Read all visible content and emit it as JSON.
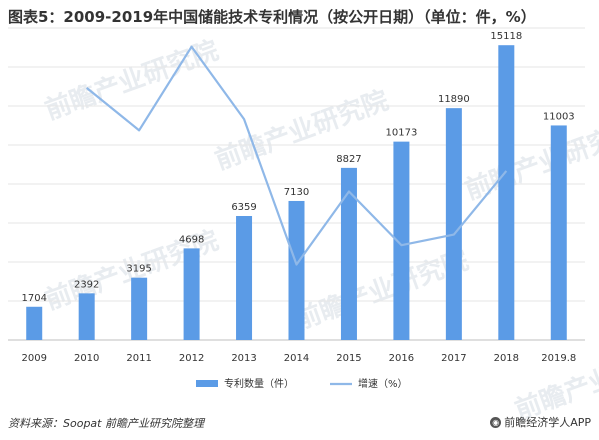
{
  "header": {
    "title": "图表5：2009-2019年中国储能技术专利情况（按公开日期）（单位：件，%）"
  },
  "footer": {
    "source": "资料来源：Soopat 前瞻产业研究院整理",
    "brand": "前瞻经济学人APP"
  },
  "watermark": {
    "text": "前瞻产业研究院"
  },
  "colors": {
    "bar": "#5b9be6",
    "line": "#8fb8e8",
    "grid": "#e6e6e6",
    "axis": "#bfbfbf"
  },
  "chart_data": {
    "type": "bar",
    "categories": [
      "2009",
      "2010",
      "2011",
      "2012",
      "2013",
      "2014",
      "2015",
      "2016",
      "2017",
      "2018",
      "2019.8"
    ],
    "series": [
      {
        "name": "专利数量（件）",
        "type": "bar",
        "values": [
          1704,
          2392,
          3195,
          4698,
          6359,
          7130,
          8827,
          10173,
          11890,
          15118,
          11003
        ]
      },
      {
        "name": "增速（%）",
        "type": "line",
        "values": [
          null,
          40.4,
          33.6,
          47.0,
          35.4,
          12.1,
          23.8,
          15.2,
          16.9,
          27.1,
          null
        ]
      }
    ],
    "ylim": [
      0,
      16000
    ],
    "y2lim": [
      0,
      50
    ],
    "grid": true,
    "legend": "bottom"
  }
}
